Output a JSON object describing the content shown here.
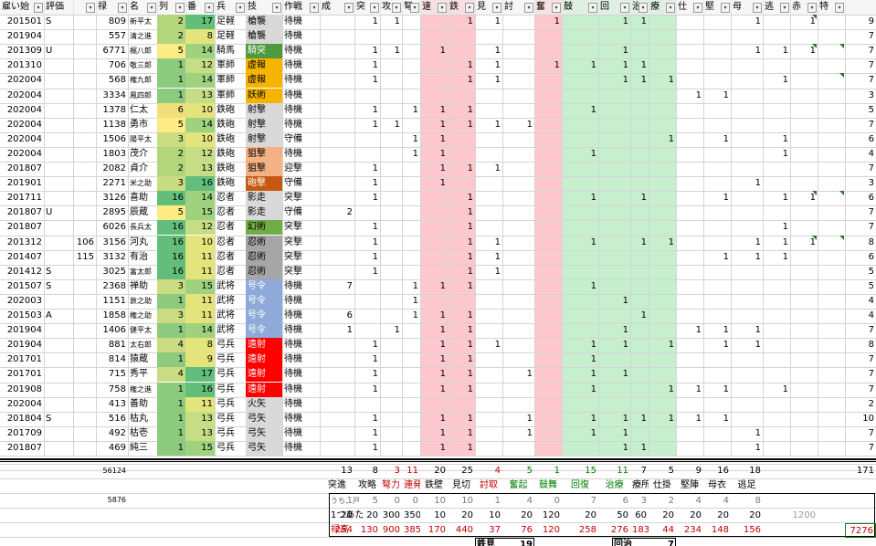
{
  "columns": [
    "雇い始",
    "評価",
    "禄",
    "名",
    "列",
    "番",
    "兵",
    "技",
    "作戦",
    "成",
    "突",
    "攻",
    "弩",
    "速",
    "鉄",
    "見",
    "討",
    "奮",
    "鼓",
    "回",
    "治",
    "療",
    "仕",
    "堅",
    "母",
    "逃",
    "赤",
    "特"
  ],
  "rows": [
    [
      "201501",
      "S",
      "",
      "809",
      "新平太",
      "2",
      "17",
      "足軽",
      "槍襲",
      "待機",
      "",
      "1",
      "1",
      "",
      "",
      "1",
      "1",
      "",
      "1",
      "",
      "1",
      "1",
      "",
      "",
      "",
      "1",
      "",
      "1",
      "",
      "9"
    ],
    [
      "201904",
      "",
      "",
      "557",
      "清之進",
      "2",
      "8",
      "足軽",
      "槍襲",
      "待機",
      "",
      "",
      "",
      "",
      "",
      "",
      "",
      "",
      "",
      "",
      "",
      "",
      "",
      "",
      "",
      "",
      "",
      "",
      "",
      "7"
    ],
    [
      "201309",
      "U",
      "",
      "6771",
      "梶八郎",
      "5",
      "14",
      "騎馬",
      "騎突",
      "待機",
      "",
      "1",
      "1",
      "",
      "1",
      "",
      "1",
      "",
      "",
      "",
      "1",
      "",
      "",
      "",
      "",
      "1",
      "1",
      "1",
      "",
      "7"
    ],
    [
      "201310",
      "",
      "",
      "706",
      "敬三郎",
      "1",
      "12",
      "軍師",
      "虚報",
      "待機",
      "",
      "1",
      "",
      "",
      "",
      "1",
      "1",
      "",
      "1",
      "1",
      "1",
      "1",
      "",
      "",
      "",
      "",
      "",
      "",
      "",
      "7"
    ],
    [
      "202004",
      "",
      "",
      "568",
      "権九郎",
      "1",
      "14",
      "軍師",
      "虚報",
      "待機",
      "",
      "1",
      "",
      "",
      "",
      "1",
      "1",
      "",
      "",
      "",
      "1",
      "1",
      "1",
      "",
      "",
      "",
      "1",
      "",
      "",
      "7"
    ],
    [
      "202004",
      "",
      "",
      "3334",
      "鳳四郎",
      "1",
      "13",
      "軍師",
      "妖術",
      "待機",
      "",
      "",
      "",
      "",
      "",
      "",
      "",
      "",
      "",
      "",
      "",
      "",
      "",
      "1",
      "1",
      "",
      "",
      "",
      "",
      "3"
    ],
    [
      "202004",
      "",
      "",
      "1378",
      "仁太",
      "6",
      "10",
      "鉄砲",
      "射撃",
      "待機",
      "",
      "1",
      "",
      "1",
      "1",
      "1",
      "",
      "",
      "",
      "1",
      "",
      "",
      "",
      "",
      "",
      "",
      "",
      "",
      "",
      "5"
    ],
    [
      "202004",
      "",
      "",
      "1138",
      "勇市",
      "5",
      "14",
      "鉄砲",
      "射撃",
      "待機",
      "",
      "1",
      "1",
      "",
      "1",
      "1",
      "1",
      "1",
      "",
      "",
      "",
      "",
      "",
      "",
      "",
      "",
      "",
      "",
      "",
      "7"
    ],
    [
      "202004",
      "",
      "",
      "1506",
      "陽平太",
      "3",
      "10",
      "鉄砲",
      "射撃",
      "守備",
      "",
      "",
      "",
      "1",
      "1",
      "",
      "",
      "",
      "",
      "",
      "",
      "",
      "1",
      "",
      "1",
      "",
      "1",
      "",
      "",
      "6"
    ],
    [
      "202004",
      "",
      "",
      "1803",
      "茂介",
      "2",
      "12",
      "鉄砲",
      "狙撃",
      "待機",
      "",
      "",
      "",
      "1",
      "1",
      "",
      "",
      "",
      "",
      "1",
      "",
      "",
      "",
      "",
      "",
      "",
      "1",
      "",
      "",
      "4"
    ],
    [
      "201807",
      "",
      "",
      "2082",
      "貞介",
      "2",
      "13",
      "鉄砲",
      "狙撃",
      "迎撃",
      "",
      "1",
      "",
      "",
      "1",
      "1",
      "1",
      "",
      "",
      "",
      "",
      "",
      "",
      "",
      "",
      "",
      "",
      "",
      "",
      "7"
    ],
    [
      "201901",
      "",
      "",
      "2271",
      "米之助",
      "3",
      "16",
      "鉄砲",
      "砲撃",
      "守備",
      "",
      "1",
      "",
      "",
      "1",
      "",
      "",
      "",
      "",
      "",
      "",
      "",
      "",
      "",
      "",
      "1",
      "",
      "",
      "",
      "3"
    ],
    [
      "201711",
      "",
      "",
      "3126",
      "喜助",
      "16",
      "14",
      "忍者",
      "影走",
      "突撃",
      "",
      "1",
      "",
      "",
      "",
      "1",
      "",
      "",
      "",
      "1",
      "",
      "1",
      "",
      "",
      "1",
      "",
      "1",
      "1",
      "",
      "6"
    ],
    [
      "201807",
      "U",
      "",
      "2895",
      "辰蔵",
      "5",
      "15",
      "忍者",
      "影走",
      "守備",
      "2",
      "",
      "",
      "",
      "",
      "1",
      "",
      "",
      "",
      "",
      "",
      "",
      "",
      "",
      "",
      "",
      "",
      "",
      "",
      "7"
    ],
    [
      "201807",
      "",
      "",
      "6026",
      "長兵太",
      "16",
      "12",
      "忍者",
      "幻術",
      "突撃",
      "",
      "1",
      "",
      "",
      "",
      "1",
      "",
      "",
      "",
      "",
      "",
      "",
      "",
      "",
      "",
      "",
      "1",
      "",
      "",
      "7"
    ],
    [
      "201312",
      "",
      "106",
      "3156",
      "河丸",
      "16",
      "10",
      "忍者",
      "忍術",
      "突撃",
      "",
      "1",
      "",
      "",
      "",
      "1",
      "1",
      "",
      "",
      "1",
      "",
      "1",
      "1",
      "",
      "",
      "1",
      "1",
      "1",
      "",
      "8"
    ],
    [
      "201407",
      "",
      "115",
      "3132",
      "有治",
      "16",
      "11",
      "忍者",
      "忍術",
      "突撃",
      "",
      "1",
      "",
      "",
      "",
      "1",
      "1",
      "",
      "",
      "",
      "",
      "",
      "",
      "",
      "1",
      "1",
      "1",
      "",
      "",
      "6"
    ],
    [
      "201412",
      "S",
      "",
      "3025",
      "富太郎",
      "16",
      "11",
      "忍者",
      "忍術",
      "突撃",
      "",
      "1",
      "",
      "",
      "",
      "1",
      "1",
      "",
      "",
      "",
      "",
      "",
      "",
      "",
      "",
      "",
      "",
      "",
      "",
      "5"
    ],
    [
      "201507",
      "S",
      "",
      "2368",
      "禅助",
      "3",
      "15",
      "武将",
      "号令",
      "待機",
      "7",
      "",
      "",
      "1",
      "1",
      "1",
      "",
      "",
      "",
      "1",
      "",
      "",
      "",
      "",
      "",
      "",
      "",
      "",
      "",
      "5"
    ],
    [
      "202003",
      "",
      "",
      "1151",
      "敦之助",
      "1",
      "11",
      "武将",
      "号令",
      "待機",
      "",
      "",
      "",
      "1",
      "",
      "",
      "",
      "",
      "",
      "",
      "1",
      "",
      "",
      "",
      "",
      "",
      "",
      "",
      "",
      "4"
    ],
    [
      "201503",
      "A",
      "",
      "1858",
      "権之助",
      "3",
      "11",
      "武将",
      "号令",
      "待機",
      "6",
      "",
      "",
      "1",
      "1",
      "1",
      "",
      "",
      "",
      "",
      "",
      "1",
      "",
      "",
      "",
      "",
      "",
      "",
      "",
      "4"
    ],
    [
      "201904",
      "",
      "",
      "1406",
      "健平太",
      "1",
      "14",
      "武将",
      "号令",
      "待機",
      "1",
      "",
      "1",
      "",
      "1",
      "1",
      "",
      "",
      "",
      "",
      "1",
      "",
      "",
      "1",
      "1",
      "1",
      "",
      "",
      "",
      "7"
    ],
    [
      "201904",
      "",
      "",
      "881",
      "太右郎",
      "4",
      "8",
      "弓兵",
      "遠射",
      "待機",
      "",
      "1",
      "",
      "",
      "1",
      "1",
      "1",
      "",
      "",
      "1",
      "1",
      "",
      "1",
      "",
      "1",
      "1",
      "",
      "",
      "",
      "8"
    ],
    [
      "201701",
      "",
      "",
      "814",
      "猿蔵",
      "1",
      "9",
      "弓兵",
      "遠射",
      "待機",
      "",
      "1",
      "",
      "",
      "1",
      "1",
      "",
      "",
      "",
      "1",
      "",
      "",
      "",
      "",
      "",
      "",
      "",
      "",
      "",
      "7"
    ],
    [
      "201701",
      "",
      "",
      "715",
      "秀平",
      "4",
      "17",
      "弓兵",
      "遠射",
      "待機",
      "",
      "1",
      "",
      "",
      "1",
      "1",
      "",
      "1",
      "",
      "1",
      "1",
      "",
      "",
      "",
      "",
      "",
      "",
      "",
      "",
      "7"
    ],
    [
      "201908",
      "",
      "",
      "758",
      "権之進",
      "1",
      "16",
      "弓兵",
      "遠射",
      "待機",
      "",
      "1",
      "",
      "",
      "1",
      "1",
      "",
      "",
      "",
      "1",
      "",
      "",
      "1",
      "1",
      "1",
      "",
      "1",
      "",
      "",
      "7"
    ],
    [
      "202004",
      "",
      "",
      "413",
      "善助",
      "1",
      "11",
      "弓兵",
      "火矢",
      "待機",
      "",
      "",
      "",
      "",
      "",
      "",
      "",
      "",
      "",
      "",
      "",
      "",
      "",
      "",
      "",
      "",
      "",
      "",
      "",
      "2"
    ],
    [
      "201804",
      "S",
      "",
      "516",
      "枯丸",
      "1",
      "13",
      "弓兵",
      "弓矢",
      "待機",
      "",
      "1",
      "",
      "",
      "1",
      "1",
      "",
      "1",
      "",
      "1",
      "1",
      "1",
      "1",
      "1",
      "1",
      "",
      "",
      "",
      "",
      "10"
    ],
    [
      "201709",
      "",
      "",
      "492",
      "枯壱",
      "1",
      "13",
      "弓兵",
      "弓矢",
      "待機",
      "",
      "1",
      "",
      "",
      "1",
      "1",
      "",
      "1",
      "",
      "1",
      "1",
      "",
      "",
      "",
      "",
      "1",
      "",
      "",
      "",
      "7"
    ],
    [
      "201807",
      "",
      "",
      "469",
      "純三",
      "1",
      "15",
      "弓兵",
      "弓矢",
      "待機",
      "",
      "1",
      "",
      "",
      "1",
      "1",
      "",
      "",
      "",
      "",
      "1",
      "1",
      "",
      "",
      "",
      "1",
      "",
      "",
      "",
      "7"
    ]
  ],
  "summary": {
    "total_roku": "56124",
    "sub_roku": "5876",
    "totals": [
      "13",
      "8",
      "3",
      "11",
      "20",
      "25",
      "4",
      "5",
      "1",
      "15",
      "11",
      "7",
      "5",
      "9",
      "16",
      "18",
      "",
      "171"
    ],
    "full_labels": [
      "突進",
      "攻略",
      "弩力",
      "連発",
      "鉄壁",
      "見切",
      "討取",
      "奮起",
      "鼓舞",
      "回復",
      "治療",
      "療所",
      "仕掛",
      "堅陣",
      "母衣",
      "逃足"
    ],
    "uchi_label": "うち、戸",
    "uchi_vals": [
      "1",
      "5",
      "0",
      "0",
      "10",
      "10",
      "1",
      "4",
      "0",
      "7",
      "6",
      "3",
      "2",
      "4",
      "4",
      "8"
    ],
    "atari_label": "1つあた",
    "atari_vals": [
      "20",
      "20",
      "300",
      "350",
      "10",
      "20",
      "10",
      "20",
      "120",
      "20",
      "50",
      "60",
      "20",
      "20",
      "20",
      "20",
      "1200"
    ],
    "rokudaka_label": "禄高",
    "rokudaka_vals": [
      "254",
      "130",
      "900",
      "3850",
      "170",
      "440",
      "37",
      "76",
      "120",
      "258",
      "276",
      "183",
      "44",
      "234",
      "148",
      "156"
    ],
    "rokudaka_total": "7276",
    "box1_label": "鉄見",
    "box1_val": "19",
    "box2_label": "回治",
    "box2_val": "7"
  },
  "colors": {
    "red_band": "#ffc7ce",
    "green_band": "#c6efce",
    "grid": "#d4d4d4",
    "rokudaka_text": "#c00000",
    "green_text": "#008000"
  }
}
